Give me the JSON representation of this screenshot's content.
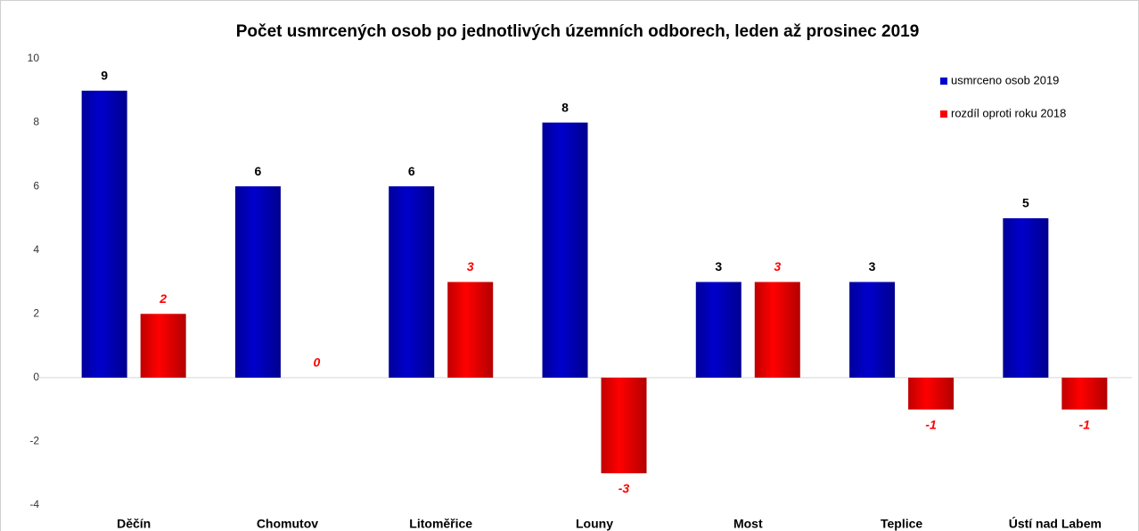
{
  "chart_data": {
    "type": "bar",
    "title": "Počet usmrcených osob po jednotlivých územních odborech, leden až prosinec 2019",
    "categories": [
      "Děčín",
      "Chomutov",
      "Litoměřice",
      "Louny",
      "Most",
      "Teplice",
      "Ústí nad Labem"
    ],
    "series": [
      {
        "name": "usmrceno osob 2019",
        "color": "#0000cc",
        "values": [
          9,
          6,
          6,
          8,
          3,
          3,
          5
        ]
      },
      {
        "name": "rozdíl oproti roku 2018",
        "color": "#ff0000",
        "values": [
          2,
          0,
          3,
          -3,
          3,
          -1,
          -1
        ]
      }
    ],
    "ylim": [
      -4,
      10
    ],
    "yticks": [
      -4,
      -2,
      0,
      2,
      4,
      6,
      8,
      10
    ],
    "grid": false,
    "legend": "top-right"
  }
}
